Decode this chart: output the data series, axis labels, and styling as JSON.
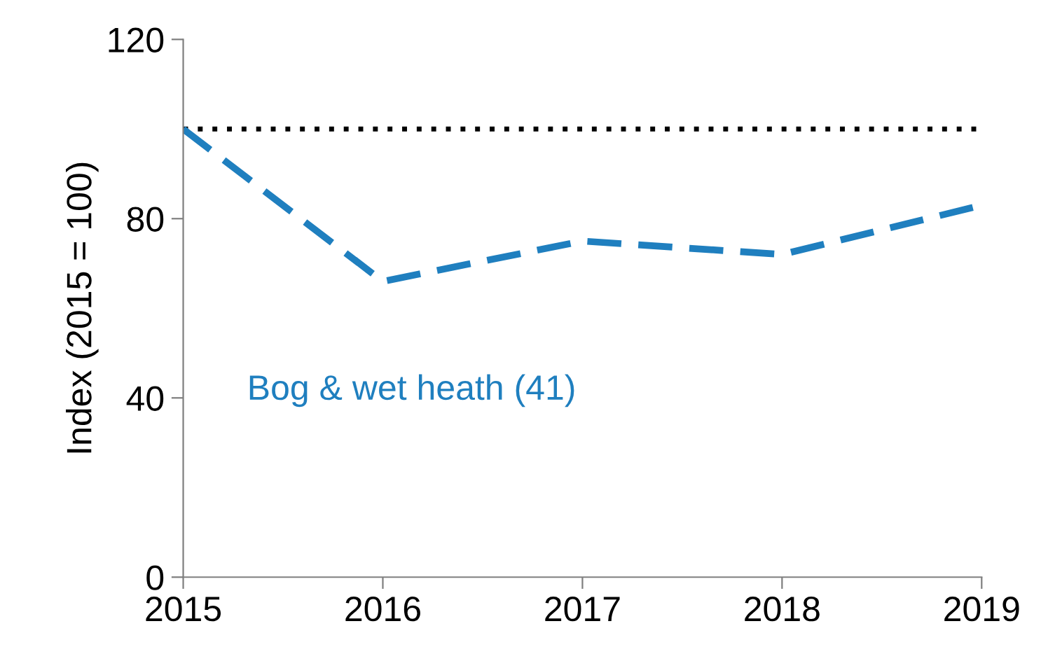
{
  "chart_data": {
    "type": "line",
    "ylabel": "Index (2015 = 100)",
    "x": [
      2015,
      2016,
      2017,
      2018,
      2019
    ],
    "series": [
      {
        "name": "Bog & wet heath (41)",
        "color": "#1f7fbf",
        "values": [
          100,
          66,
          75,
          72,
          83
        ]
      }
    ],
    "xlim": [
      2015,
      2019
    ],
    "xticks": [
      2015,
      2016,
      2017,
      2018,
      2019
    ],
    "ylim": [
      0,
      120
    ],
    "yticks": [
      0,
      40,
      80,
      120
    ],
    "ref_lines": [
      {
        "axis": "y",
        "value": 100,
        "color": "#000000",
        "line_style": "dotted"
      }
    ],
    "line_style": "dashed",
    "marker": "none",
    "grid": false,
    "legend": false
  }
}
